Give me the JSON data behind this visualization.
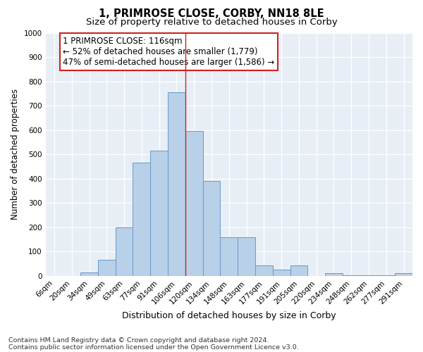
{
  "title": "1, PRIMROSE CLOSE, CORBY, NN18 8LE",
  "subtitle": "Size of property relative to detached houses in Corby",
  "xlabel": "Distribution of detached houses by size in Corby",
  "ylabel": "Number of detached properties",
  "categories": [
    "6sqm",
    "20sqm",
    "34sqm",
    "49sqm",
    "63sqm",
    "77sqm",
    "91sqm",
    "106sqm",
    "120sqm",
    "134sqm",
    "148sqm",
    "163sqm",
    "177sqm",
    "191sqm",
    "205sqm",
    "220sqm",
    "234sqm",
    "248sqm",
    "262sqm",
    "277sqm",
    "291sqm"
  ],
  "values": [
    0,
    0,
    15,
    65,
    200,
    465,
    515,
    755,
    595,
    390,
    160,
    160,
    42,
    27,
    42,
    0,
    12,
    2,
    2,
    2,
    10
  ],
  "bar_color": "#b8d0e8",
  "bar_edge_color": "#6699cc",
  "vline_index": 7.5,
  "vline_color": "#cc2222",
  "annotation_text": "1 PRIMROSE CLOSE: 116sqm\n← 52% of detached houses are smaller (1,779)\n47% of semi-detached houses are larger (1,586) →",
  "annotation_box_color": "#cc2222",
  "ylim": [
    0,
    1000
  ],
  "yticks": [
    0,
    100,
    200,
    300,
    400,
    500,
    600,
    700,
    800,
    900,
    1000
  ],
  "background_color": "#e8eef5",
  "grid_color": "#ffffff",
  "fig_facecolor": "#ffffff",
  "footer_line1": "Contains HM Land Registry data © Crown copyright and database right 2024.",
  "footer_line2": "Contains public sector information licensed under the Open Government Licence v3.0.",
  "title_fontsize": 10.5,
  "subtitle_fontsize": 9.5,
  "xlabel_fontsize": 9,
  "ylabel_fontsize": 8.5,
  "tick_fontsize": 7.5,
  "annotation_fontsize": 8.5,
  "footer_fontsize": 6.8
}
